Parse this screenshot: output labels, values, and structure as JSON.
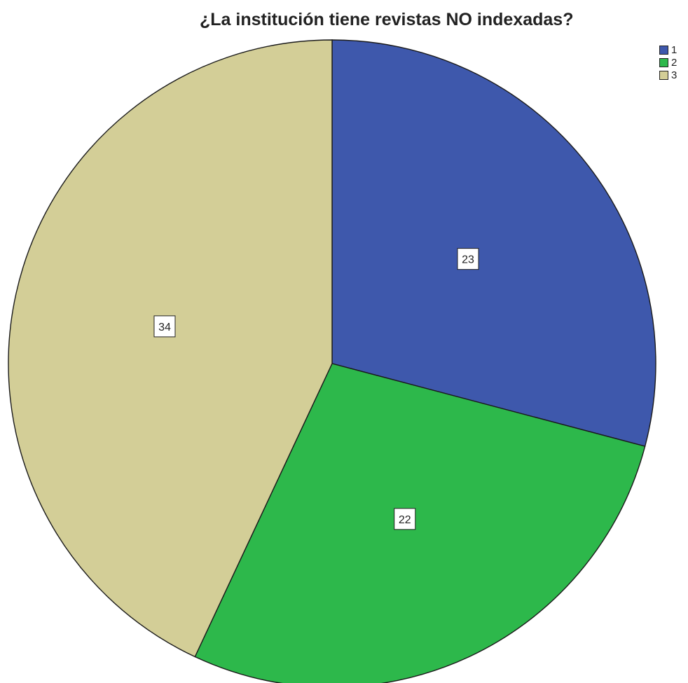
{
  "chart_data": {
    "type": "pie",
    "title": "¿La institución tiene revistas NO indexadas?",
    "categories": [
      "1",
      "2",
      "3"
    ],
    "values": [
      23,
      22,
      34
    ],
    "colors": [
      "#3e58ac",
      "#2db84b",
      "#d3ce97"
    ],
    "data_labels": [
      "23",
      "22",
      "34"
    ],
    "legend": "top-right",
    "start_angle": "12 o'clock",
    "direction": "clockwise"
  }
}
